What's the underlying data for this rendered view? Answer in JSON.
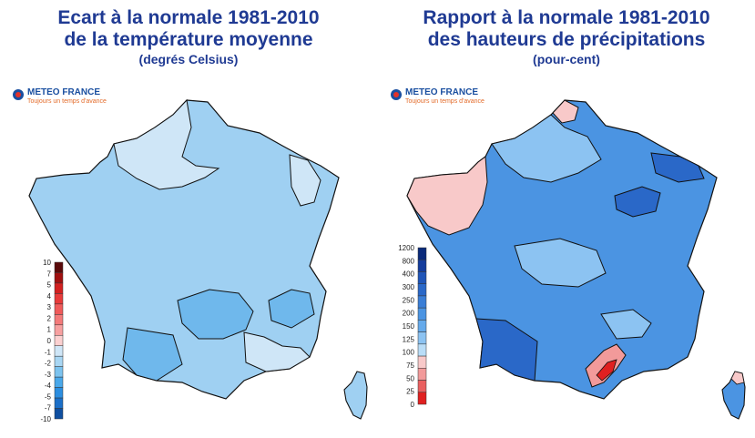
{
  "left": {
    "title_l1": "Ecart à la normale 1981-2010",
    "title_l2": "de la température moyenne",
    "title_l3": "(degrés Celsius)",
    "brand_name": "METEO FRANCE",
    "brand_tag": "Toujours un temps d'avance",
    "legend": {
      "labels": [
        "10",
        "7",
        "5",
        "4",
        "3",
        "2",
        "1",
        "0",
        "-1",
        "-2",
        "-3",
        "-4",
        "-5",
        "-7",
        "-10"
      ],
      "colors": [
        "#5a0a0a",
        "#a01010",
        "#d32020",
        "#e83a3a",
        "#f05a5a",
        "#f47a7a",
        "#f7a0a0",
        "#fbd0d0",
        "#cfe6f7",
        "#a8d6f3",
        "#7cc3ef",
        "#4aa8ea",
        "#2c8ee0",
        "#1b6fc8",
        "#0f4fa0"
      ]
    }
  },
  "right": {
    "title_l1": "Rapport à la normale 1981-2010",
    "title_l2": "des hauteurs de précipitations",
    "title_l3": "(pour-cent)",
    "brand_name": "METEO FRANCE",
    "brand_tag": "Toujours un temps d'avance",
    "legend": {
      "labels": [
        "1200",
        "800",
        "400",
        "300",
        "250",
        "200",
        "150",
        "125",
        "100",
        "75",
        "50",
        "25",
        "0"
      ],
      "colors": [
        "#0a2a7a",
        "#143c9c",
        "#1f55b8",
        "#2a68c8",
        "#3a7ed6",
        "#4b94e2",
        "#65aaeb",
        "#8cc3f2",
        "#b9ddf7",
        "#f8c9c9",
        "#f29a9a",
        "#ea6060",
        "#e02020"
      ]
    }
  }
}
